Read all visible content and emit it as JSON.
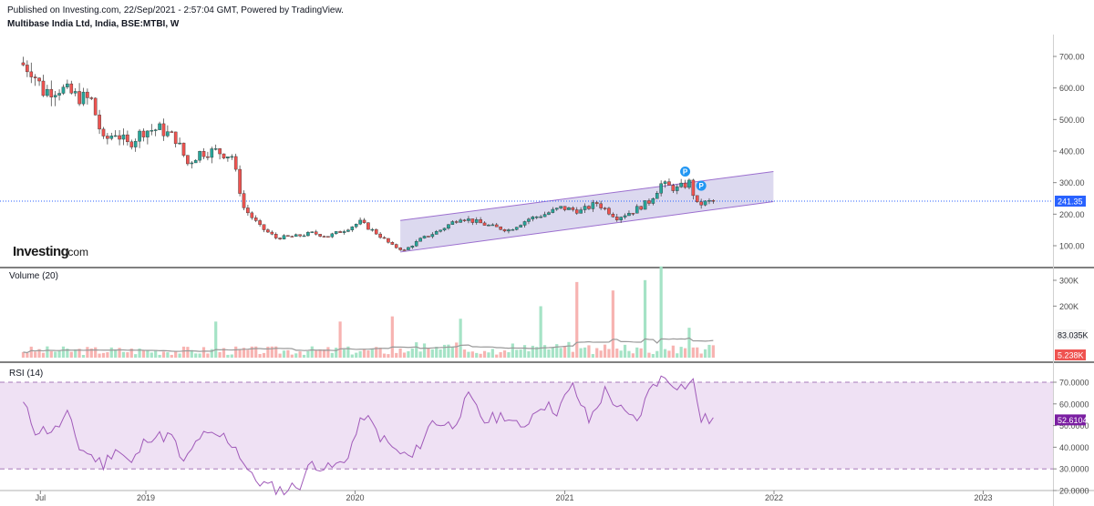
{
  "header": {
    "published": "Published on Investing.com, 22/Sep/2021 - 2:57:04 GMT, Powered by TradingView.",
    "instrument": "Multibase India Ltd, India, BSE:MTBI, W"
  },
  "logo": {
    "brand": "Investing",
    "suffix": ".com"
  },
  "colors": {
    "up": "#26a69a",
    "down": "#ef5350",
    "up_vol": "#a5e3c6",
    "down_vol": "#f7b3b1",
    "channel_fill": "#d6d2ec",
    "channel_line": "#9c6fcf",
    "rsi": "#a05ab9",
    "rsi_band": "#efe1f4",
    "last_price_bg": "#2962ff",
    "vol_ma": "#999999",
    "rsi_label_bg": "#7b1fa2",
    "down_label_bg": "#ef5350"
  },
  "icons": {
    "pivot_marker": "pivot-marker-icon"
  },
  "chart_data": [
    {
      "type": "candlestick",
      "title": "Multibase India Ltd, India, BSE:MTBI, W",
      "interval": "W",
      "x_range": [
        "2018-06-01",
        "2023-06-01"
      ],
      "x_ticks": [
        {
          "date": "2018-07-01",
          "label": "Jul"
        },
        {
          "date": "2019-01-01",
          "label": "2019"
        },
        {
          "date": "2020-01-01",
          "label": "2020"
        },
        {
          "date": "2021-01-01",
          "label": "2021"
        },
        {
          "date": "2022-01-01",
          "label": "2022"
        },
        {
          "date": "2023-01-01",
          "label": "2023"
        }
      ],
      "ylim": [
        70,
        770
      ],
      "y_ticks": [
        100,
        200,
        300,
        400,
        500,
        600,
        700
      ],
      "y_tick_labels": [
        "100.00",
        "200.00",
        "300.00",
        "400.00",
        "500.00",
        "600.00",
        "700.00"
      ],
      "last_price": 241.35,
      "last_price_label": "241.35",
      "price_path": [
        [
          "2018-06-01",
          680
        ],
        [
          "2018-06-22",
          660
        ],
        [
          "2018-07-13",
          590
        ],
        [
          "2018-08-10",
          600
        ],
        [
          "2018-09-07",
          575
        ],
        [
          "2018-10-05",
          560
        ],
        [
          "2018-10-26",
          430
        ],
        [
          "2018-11-16",
          460
        ],
        [
          "2018-12-07",
          420
        ],
        [
          "2019-01-04",
          465
        ],
        [
          "2019-02-01",
          470
        ],
        [
          "2019-03-01",
          440
        ],
        [
          "2019-03-22",
          360
        ],
        [
          "2019-04-12",
          395
        ],
        [
          "2019-05-10",
          400
        ],
        [
          "2019-06-07",
          385
        ],
        [
          "2019-06-28",
          220
        ],
        [
          "2019-07-26",
          160
        ],
        [
          "2019-08-23",
          125
        ],
        [
          "2019-09-27",
          130
        ],
        [
          "2019-10-25",
          140
        ],
        [
          "2019-11-22",
          130
        ],
        [
          "2019-12-20",
          150
        ],
        [
          "2020-01-17",
          175
        ],
        [
          "2020-02-14",
          140
        ],
        [
          "2020-03-13",
          100
        ],
        [
          "2020-04-03",
          85
        ],
        [
          "2020-05-01",
          120
        ],
        [
          "2020-06-05",
          150
        ],
        [
          "2020-07-10",
          190
        ],
        [
          "2020-08-07",
          175
        ],
        [
          "2020-09-04",
          160
        ],
        [
          "2020-10-02",
          150
        ],
        [
          "2020-11-06",
          185
        ],
        [
          "2020-12-04",
          200
        ],
        [
          "2021-01-01",
          220
        ],
        [
          "2021-02-05",
          210
        ],
        [
          "2021-03-05",
          235
        ],
        [
          "2021-04-09",
          190
        ],
        [
          "2021-05-07",
          210
        ],
        [
          "2021-06-04",
          240
        ],
        [
          "2021-06-25",
          295
        ],
        [
          "2021-07-23",
          280
        ],
        [
          "2021-08-13",
          300
        ],
        [
          "2021-08-27",
          230
        ],
        [
          "2021-09-22",
          241.35
        ]
      ],
      "trend_channel": {
        "start": "2020-03-20",
        "end": "2021-12-31",
        "upper": [
          180,
          335
        ],
        "lower": [
          80,
          240
        ]
      },
      "pivot_markers": [
        {
          "date": "2021-07-30",
          "price": 335,
          "label": "P"
        },
        {
          "date": "2021-08-27",
          "price": 290,
          "label": "P"
        }
      ]
    },
    {
      "type": "bar",
      "title": "Volume (20)",
      "ylim": [
        0,
        350
      ],
      "y_ticks": [
        200,
        300
      ],
      "y_tick_labels": [
        "200K",
        "300K"
      ],
      "ma_label": "83.035K",
      "last_label": "5.238K",
      "spikes": [
        {
          "date": "2019-05-03",
          "value": 140
        },
        {
          "date": "2019-12-06",
          "value": 140
        },
        {
          "date": "2020-03-06",
          "value": 160
        },
        {
          "date": "2020-07-03",
          "value": 150
        },
        {
          "date": "2020-11-20",
          "value": 185
        },
        {
          "date": "2021-01-22",
          "value": 275
        },
        {
          "date": "2021-03-26",
          "value": 260
        },
        {
          "date": "2021-05-21",
          "value": 295
        },
        {
          "date": "2021-06-18",
          "value": 335
        },
        {
          "date": "2021-08-06",
          "value": 115
        }
      ]
    },
    {
      "type": "line",
      "title": "RSI (14)",
      "ylim": [
        15,
        75
      ],
      "y_ticks": [
        20,
        30,
        40,
        50,
        60,
        70
      ],
      "y_tick_labels": [
        "20.0000",
        "30.0000",
        "40.0000",
        "50.0000",
        "60.0000",
        "70.0000"
      ],
      "band": [
        30,
        70
      ],
      "last_value": 52.6104,
      "last_label": "52.6104",
      "points": [
        [
          "2018-06-01",
          60
        ],
        [
          "2018-06-22",
          48
        ],
        [
          "2018-07-27",
          48
        ],
        [
          "2018-08-17",
          55
        ],
        [
          "2018-09-07",
          40
        ],
        [
          "2018-10-19",
          32
        ],
        [
          "2018-11-09",
          40
        ],
        [
          "2018-12-07",
          32
        ],
        [
          "2019-01-04",
          45
        ],
        [
          "2019-02-15",
          45
        ],
        [
          "2019-03-08",
          32
        ],
        [
          "2019-04-05",
          45
        ],
        [
          "2019-05-17",
          45
        ],
        [
          "2019-06-07",
          40
        ],
        [
          "2019-07-05",
          26
        ],
        [
          "2019-08-02",
          22
        ],
        [
          "2019-08-30",
          20
        ],
        [
          "2019-09-27",
          23
        ],
        [
          "2019-10-18",
          33
        ],
        [
          "2019-11-15",
          30
        ],
        [
          "2019-12-13",
          33
        ],
        [
          "2020-01-17",
          55
        ],
        [
          "2020-02-14",
          45
        ],
        [
          "2020-03-13",
          38
        ],
        [
          "2020-04-10",
          35
        ],
        [
          "2020-05-15",
          52
        ],
        [
          "2020-06-19",
          50
        ],
        [
          "2020-07-17",
          63
        ],
        [
          "2020-08-14",
          52
        ],
        [
          "2020-09-18",
          55
        ],
        [
          "2020-10-16",
          48
        ],
        [
          "2020-11-20",
          60
        ],
        [
          "2020-12-18",
          57
        ],
        [
          "2021-01-15",
          68
        ],
        [
          "2021-02-12",
          52
        ],
        [
          "2021-03-12",
          66
        ],
        [
          "2021-04-16",
          55
        ],
        [
          "2021-05-07",
          52
        ],
        [
          "2021-06-04",
          70
        ],
        [
          "2021-06-25",
          72
        ],
        [
          "2021-07-23",
          68
        ],
        [
          "2021-08-13",
          70
        ],
        [
          "2021-08-27",
          53
        ],
        [
          "2021-09-22",
          52.6
        ]
      ]
    }
  ]
}
